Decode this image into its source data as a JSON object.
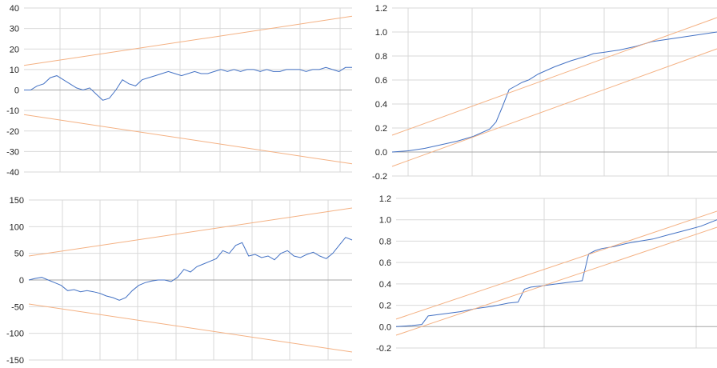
{
  "colors": {
    "series": "#4472C4",
    "bounds": "#F4B183",
    "grid": "#D9D9D9",
    "baseline": "#A6A6A6"
  },
  "chart_data": [
    {
      "type": "line",
      "title": "",
      "ylim": [
        -40,
        40
      ],
      "yticks": [
        "40",
        "30",
        "20",
        "10",
        "0",
        "-10",
        "-20",
        "-30",
        "-40"
      ],
      "x_range": [
        0,
        1
      ],
      "series": [
        {
          "role": "cusum",
          "x": [
            0,
            0.02,
            0.04,
            0.06,
            0.08,
            0.1,
            0.12,
            0.14,
            0.16,
            0.18,
            0.2,
            0.22,
            0.24,
            0.26,
            0.28,
            0.3,
            0.32,
            0.34,
            0.36,
            0.38,
            0.4,
            0.42,
            0.44,
            0.46,
            0.48,
            0.5,
            0.52,
            0.54,
            0.56,
            0.58,
            0.6,
            0.62,
            0.64,
            0.66,
            0.68,
            0.7,
            0.72,
            0.74,
            0.76,
            0.78,
            0.8,
            0.82,
            0.84,
            0.86,
            0.88,
            0.9,
            0.92,
            0.94,
            0.96,
            0.98,
            1.0
          ],
          "values": [
            0,
            0,
            2,
            3,
            6,
            7,
            5,
            3,
            1,
            0,
            1,
            -2,
            -5,
            -4,
            0,
            5,
            3,
            2,
            5,
            6,
            7,
            8,
            9,
            8,
            7,
            8,
            9,
            8,
            8,
            9,
            10,
            9,
            10,
            9,
            10,
            10,
            9,
            10,
            9,
            9,
            10,
            10,
            10,
            9,
            10,
            10,
            11,
            10,
            9,
            11,
            11
          ]
        },
        {
          "role": "upper",
          "x": [
            0,
            1
          ],
          "values": [
            12,
            36
          ]
        },
        {
          "role": "lower",
          "x": [
            0,
            1
          ],
          "values": [
            -12,
            -36
          ]
        }
      ]
    },
    {
      "type": "line",
      "title": "",
      "ylim": [
        -0.2,
        1.2
      ],
      "yticks": [
        "1.2",
        "1.0",
        "0.8",
        "0.6",
        "0.4",
        "0.2",
        "0.0",
        "-0.2"
      ],
      "x_range": [
        0,
        1
      ],
      "series": [
        {
          "role": "cusum_sq",
          "x": [
            0,
            0.05,
            0.1,
            0.15,
            0.2,
            0.25,
            0.3,
            0.32,
            0.34,
            0.36,
            0.38,
            0.4,
            0.42,
            0.45,
            0.5,
            0.55,
            0.6,
            0.62,
            0.65,
            0.7,
            0.75,
            0.8,
            0.85,
            0.9,
            0.95,
            1.0
          ],
          "values": [
            0,
            0.01,
            0.03,
            0.06,
            0.09,
            0.13,
            0.19,
            0.25,
            0.38,
            0.52,
            0.55,
            0.58,
            0.6,
            0.65,
            0.71,
            0.76,
            0.8,
            0.82,
            0.83,
            0.85,
            0.88,
            0.92,
            0.94,
            0.96,
            0.98,
            1.0
          ]
        },
        {
          "role": "upper",
          "x": [
            0,
            1
          ],
          "values": [
            0.14,
            1.12
          ]
        },
        {
          "role": "lower",
          "x": [
            0,
            1
          ],
          "values": [
            -0.12,
            0.86
          ]
        }
      ]
    },
    {
      "type": "line",
      "title": "",
      "ylim": [
        -150,
        150
      ],
      "yticks": [
        "150",
        "100",
        "50",
        "0",
        "-50",
        "-100",
        "-150"
      ],
      "x_range": [
        0,
        1
      ],
      "series": [
        {
          "role": "cusum",
          "x": [
            0,
            0.02,
            0.04,
            0.06,
            0.08,
            0.1,
            0.12,
            0.14,
            0.16,
            0.18,
            0.2,
            0.22,
            0.24,
            0.26,
            0.28,
            0.3,
            0.32,
            0.34,
            0.36,
            0.38,
            0.4,
            0.42,
            0.44,
            0.46,
            0.48,
            0.5,
            0.52,
            0.54,
            0.56,
            0.58,
            0.6,
            0.62,
            0.64,
            0.66,
            0.68,
            0.7,
            0.72,
            0.74,
            0.76,
            0.78,
            0.8,
            0.82,
            0.84,
            0.86,
            0.88,
            0.9,
            0.92,
            0.94,
            0.96,
            0.98,
            1.0
          ],
          "values": [
            0,
            3,
            5,
            0,
            -5,
            -10,
            -20,
            -18,
            -22,
            -20,
            -22,
            -25,
            -30,
            -33,
            -38,
            -33,
            -20,
            -10,
            -5,
            -2,
            0,
            0,
            -3,
            5,
            20,
            15,
            25,
            30,
            35,
            40,
            55,
            50,
            65,
            70,
            45,
            48,
            42,
            45,
            38,
            50,
            55,
            45,
            42,
            48,
            52,
            45,
            40,
            50,
            65,
            80,
            75
          ]
        },
        {
          "role": "upper",
          "x": [
            0,
            1
          ],
          "values": [
            45,
            135
          ]
        },
        {
          "role": "lower",
          "x": [
            0,
            1
          ],
          "values": [
            -45,
            -135
          ]
        }
      ]
    },
    {
      "type": "line",
      "title": "",
      "ylim": [
        -0.2,
        1.2
      ],
      "yticks": [
        "1.2",
        "1.0",
        "0.8",
        "0.6",
        "0.4",
        "0.2",
        "0.0",
        "-0.2"
      ],
      "x_range": [
        0,
        1
      ],
      "series": [
        {
          "role": "cusum_sq",
          "x": [
            0,
            0.05,
            0.08,
            0.1,
            0.15,
            0.2,
            0.25,
            0.3,
            0.35,
            0.38,
            0.4,
            0.42,
            0.45,
            0.5,
            0.55,
            0.58,
            0.6,
            0.62,
            0.64,
            0.68,
            0.72,
            0.76,
            0.8,
            0.85,
            0.9,
            0.95,
            1.0
          ],
          "values": [
            0,
            0.01,
            0.02,
            0.1,
            0.12,
            0.14,
            0.17,
            0.19,
            0.22,
            0.23,
            0.35,
            0.37,
            0.38,
            0.4,
            0.42,
            0.43,
            0.68,
            0.71,
            0.73,
            0.75,
            0.78,
            0.8,
            0.82,
            0.86,
            0.9,
            0.94,
            1.0
          ]
        },
        {
          "role": "upper",
          "x": [
            0,
            1
          ],
          "values": [
            0.07,
            1.08
          ]
        },
        {
          "role": "lower",
          "x": [
            0,
            1
          ],
          "values": [
            -0.08,
            0.93
          ]
        }
      ]
    }
  ]
}
